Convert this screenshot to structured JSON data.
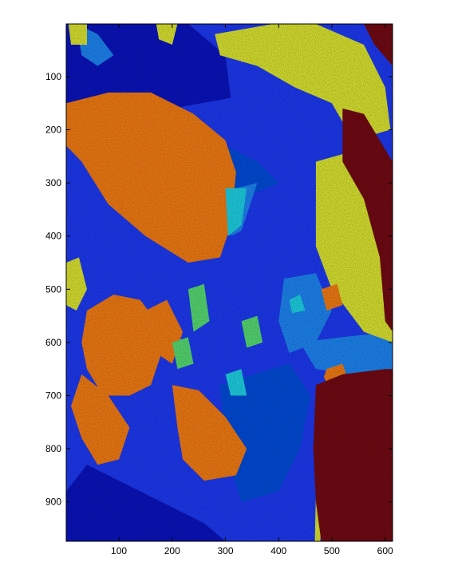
{
  "chart_data": {
    "type": "heatmap",
    "title": "",
    "xlabel": "",
    "ylabel": "",
    "xlim": [
      1,
      614
    ],
    "ylim": [
      1,
      974
    ],
    "y_reversed": true,
    "x_ticks": [
      100,
      200,
      300,
      400,
      500,
      600
    ],
    "y_ticks": [
      100,
      200,
      300,
      400,
      500,
      600,
      700,
      800,
      900
    ],
    "grid": false,
    "colormap": "jet",
    "palette": {
      "deep_blue": "#0a14c8",
      "mid_blue": "#1e3cff",
      "royal_blue": "#0050e6",
      "light_blue": "#1e8cff",
      "cyan": "#1edcf0",
      "green": "#5ae678",
      "yellow": "#e6f032",
      "orange": "#ff8214",
      "dark_red": "#780a14"
    },
    "regions": [
      {
        "cls": "mid_blue",
        "pts": [
          [
            1,
            1
          ],
          [
            614,
            1
          ],
          [
            614,
            974
          ],
          [
            1,
            974
          ]
        ]
      },
      {
        "cls": "deep_blue",
        "pts": [
          [
            1,
            1
          ],
          [
            230,
            1
          ],
          [
            300,
            60
          ],
          [
            310,
            140
          ],
          [
            200,
            160
          ],
          [
            90,
            150
          ],
          [
            1,
            180
          ]
        ]
      },
      {
        "cls": "deep_blue",
        "pts": [
          [
            1,
            880
          ],
          [
            40,
            830
          ],
          [
            100,
            860
          ],
          [
            180,
            900
          ],
          [
            260,
            940
          ],
          [
            300,
            974
          ],
          [
            1,
            974
          ]
        ]
      },
      {
        "cls": "royal_blue",
        "pts": [
          [
            140,
            230
          ],
          [
            260,
            210
          ],
          [
            360,
            260
          ],
          [
            400,
            300
          ],
          [
            330,
            330
          ],
          [
            250,
            300
          ],
          [
            170,
            280
          ]
        ]
      },
      {
        "cls": "royal_blue",
        "pts": [
          [
            290,
            680
          ],
          [
            420,
            640
          ],
          [
            460,
            700
          ],
          [
            440,
            800
          ],
          [
            400,
            880
          ],
          [
            330,
            900
          ],
          [
            300,
            800
          ]
        ]
      },
      {
        "cls": "light_blue",
        "pts": [
          [
            20,
            1
          ],
          [
            60,
            20
          ],
          [
            90,
            60
          ],
          [
            60,
            80
          ],
          [
            30,
            60
          ]
        ]
      },
      {
        "cls": "light_blue",
        "pts": [
          [
            410,
            480
          ],
          [
            470,
            470
          ],
          [
            500,
            540
          ],
          [
            470,
            600
          ],
          [
            420,
            620
          ],
          [
            400,
            560
          ]
        ]
      },
      {
        "cls": "light_blue",
        "pts": [
          [
            440,
            600
          ],
          [
            520,
            590
          ],
          [
            614,
            580
          ],
          [
            614,
            650
          ],
          [
            540,
            660
          ],
          [
            470,
            650
          ]
        ]
      },
      {
        "cls": "light_blue",
        "pts": [
          [
            320,
            310
          ],
          [
            360,
            300
          ],
          [
            350,
            330
          ],
          [
            330,
            390
          ],
          [
            310,
            400
          ]
        ]
      },
      {
        "cls": "yellow",
        "pts": [
          [
            280,
            20
          ],
          [
            390,
            1
          ],
          [
            470,
            1
          ],
          [
            560,
            40
          ],
          [
            600,
            120
          ],
          [
            610,
            200
          ],
          [
            540,
            220
          ],
          [
            500,
            150
          ],
          [
            430,
            120
          ],
          [
            360,
            80
          ],
          [
            290,
            60
          ]
        ]
      },
      {
        "cls": "yellow",
        "pts": [
          [
            470,
            260
          ],
          [
            540,
            240
          ],
          [
            600,
            260
          ],
          [
            614,
            330
          ],
          [
            614,
            600
          ],
          [
            560,
            580
          ],
          [
            500,
            500
          ],
          [
            470,
            420
          ]
        ]
      },
      {
        "cls": "yellow",
        "pts": [
          [
            1,
            450
          ],
          [
            25,
            440
          ],
          [
            40,
            500
          ],
          [
            20,
            540
          ],
          [
            1,
            530
          ]
        ]
      },
      {
        "cls": "yellow",
        "pts": [
          [
            5,
            1
          ],
          [
            40,
            1
          ],
          [
            40,
            40
          ],
          [
            10,
            40
          ]
        ]
      },
      {
        "cls": "yellow",
        "pts": [
          [
            170,
            1
          ],
          [
            210,
            1
          ],
          [
            200,
            40
          ],
          [
            175,
            30
          ]
        ]
      },
      {
        "cls": "yellow",
        "pts": [
          [
            475,
            830
          ],
          [
            485,
            880
          ],
          [
            478,
            974
          ],
          [
            468,
            974
          ],
          [
            470,
            880
          ]
        ]
      },
      {
        "cls": "orange",
        "pts": [
          [
            1,
            150
          ],
          [
            80,
            130
          ],
          [
            160,
            130
          ],
          [
            240,
            170
          ],
          [
            300,
            220
          ],
          [
            320,
            280
          ],
          [
            310,
            380
          ],
          [
            290,
            440
          ],
          [
            230,
            450
          ],
          [
            150,
            400
          ],
          [
            80,
            340
          ],
          [
            30,
            260
          ],
          [
            1,
            230
          ]
        ]
      },
      {
        "cls": "orange",
        "pts": [
          [
            150,
            320
          ],
          [
            220,
            330
          ],
          [
            260,
            380
          ],
          [
            240,
            420
          ],
          [
            180,
            400
          ]
        ]
      },
      {
        "cls": "orange",
        "pts": [
          [
            40,
            540
          ],
          [
            90,
            510
          ],
          [
            140,
            520
          ],
          [
            170,
            560
          ],
          [
            180,
            620
          ],
          [
            160,
            680
          ],
          [
            120,
            700
          ],
          [
            70,
            700
          ],
          [
            40,
            650
          ],
          [
            30,
            600
          ]
        ]
      },
      {
        "cls": "orange",
        "pts": [
          [
            30,
            660
          ],
          [
            80,
            700
          ],
          [
            120,
            760
          ],
          [
            100,
            820
          ],
          [
            60,
            830
          ],
          [
            30,
            780
          ],
          [
            10,
            720
          ]
        ]
      },
      {
        "cls": "orange",
        "pts": [
          [
            200,
            680
          ],
          [
            250,
            690
          ],
          [
            300,
            740
          ],
          [
            340,
            800
          ],
          [
            320,
            850
          ],
          [
            260,
            860
          ],
          [
            220,
            820
          ],
          [
            210,
            760
          ]
        ]
      },
      {
        "cls": "orange",
        "pts": [
          [
            150,
            540
          ],
          [
            190,
            520
          ],
          [
            220,
            580
          ],
          [
            200,
            640
          ],
          [
            170,
            620
          ]
        ]
      },
      {
        "cls": "orange",
        "pts": [
          [
            490,
            650
          ],
          [
            520,
            640
          ],
          [
            530,
            670
          ],
          [
            515,
            690
          ],
          [
            495,
            685
          ],
          [
            485,
            665
          ]
        ]
      },
      {
        "cls": "orange",
        "pts": [
          [
            480,
            500
          ],
          [
            510,
            490
          ],
          [
            520,
            530
          ],
          [
            490,
            540
          ]
        ]
      },
      {
        "cls": "dark_red",
        "pts": [
          [
            520,
            160
          ],
          [
            560,
            170
          ],
          [
            590,
            220
          ],
          [
            614,
            260
          ],
          [
            614,
            580
          ],
          [
            600,
            560
          ],
          [
            590,
            440
          ],
          [
            560,
            330
          ],
          [
            520,
            260
          ]
        ]
      },
      {
        "cls": "dark_red",
        "pts": [
          [
            470,
            680
          ],
          [
            520,
            660
          ],
          [
            600,
            650
          ],
          [
            614,
            650
          ],
          [
            614,
            974
          ],
          [
            480,
            974
          ],
          [
            470,
            900
          ],
          [
            465,
            800
          ]
        ]
      },
      {
        "cls": "dark_red",
        "pts": [
          [
            560,
            1
          ],
          [
            614,
            1
          ],
          [
            614,
            80
          ],
          [
            580,
            40
          ]
        ]
      },
      {
        "cls": "cyan",
        "pts": [
          [
            300,
            310
          ],
          [
            340,
            310
          ],
          [
            330,
            380
          ],
          [
            305,
            400
          ]
        ]
      },
      {
        "cls": "cyan",
        "pts": [
          [
            300,
            660
          ],
          [
            330,
            650
          ],
          [
            340,
            700
          ],
          [
            310,
            700
          ]
        ]
      },
      {
        "cls": "cyan",
        "pts": [
          [
            420,
            520
          ],
          [
            440,
            510
          ],
          [
            450,
            540
          ],
          [
            425,
            545
          ]
        ]
      },
      {
        "cls": "green",
        "pts": [
          [
            230,
            500
          ],
          [
            260,
            490
          ],
          [
            270,
            560
          ],
          [
            240,
            580
          ]
        ]
      },
      {
        "cls": "green",
        "pts": [
          [
            200,
            600
          ],
          [
            230,
            590
          ],
          [
            240,
            640
          ],
          [
            210,
            650
          ]
        ]
      },
      {
        "cls": "green",
        "pts": [
          [
            330,
            560
          ],
          [
            360,
            550
          ],
          [
            370,
            600
          ],
          [
            340,
            610
          ]
        ]
      }
    ]
  }
}
